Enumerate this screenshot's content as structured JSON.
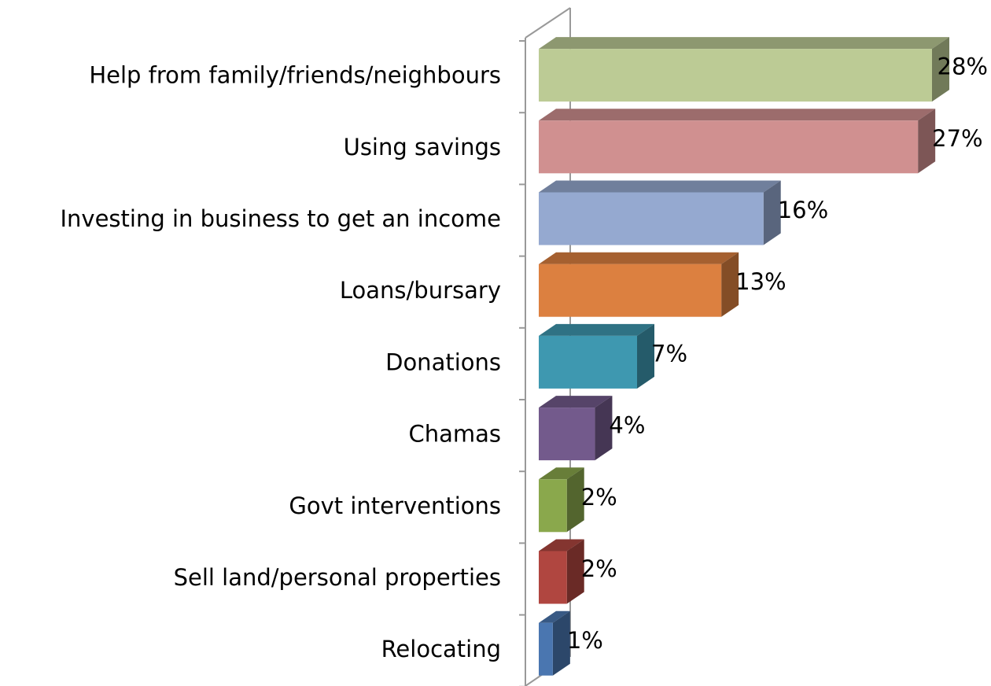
{
  "chart_data": {
    "type": "bar3d_horizontal",
    "categories": [
      "Help from family/friends/neighbours",
      "Using savings",
      "Investing in business to get an income",
      "Loans/bursary",
      "Donations",
      "Chamas",
      "Govt interventions",
      "Sell land/personal properties",
      "Relocating"
    ],
    "values": [
      28,
      27,
      16,
      13,
      7,
      4,
      2,
      2,
      1
    ],
    "value_labels": [
      "28%",
      "27%",
      "16%",
      "13%",
      "7%",
      "4%",
      "2%",
      "2%",
      "1%"
    ],
    "colors": [
      "#bccb95",
      "#d09090",
      "#95a9d0",
      "#dc8040",
      "#3e98b0",
      "#735a8c",
      "#8aa84c",
      "#b04640",
      "#4a76b0"
    ]
  }
}
